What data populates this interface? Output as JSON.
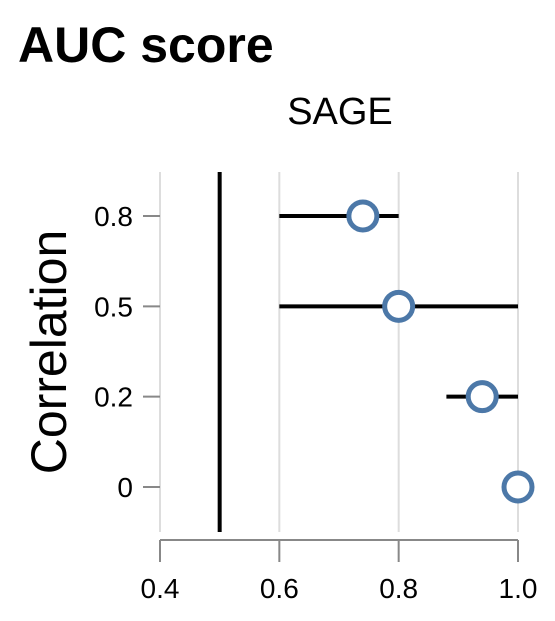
{
  "chart_data": {
    "type": "scatter",
    "title": "AUC score",
    "facet_label": "SAGE",
    "ylabel": "Correlation",
    "xlabel": "",
    "x_ticks": [
      "0.4",
      "0.6",
      "0.8",
      "1.0"
    ],
    "x_tick_values": [
      0.4,
      0.6,
      0.8,
      1.0
    ],
    "xlim": [
      0.4,
      1.0
    ],
    "y_categories": [
      "0.8",
      "0.5",
      "0.2",
      "0"
    ],
    "reference_line_x": 0.5,
    "points": [
      {
        "correlation": "0.8",
        "auc": 0.74,
        "low": 0.6,
        "high": 0.8
      },
      {
        "correlation": "0.5",
        "auc": 0.8,
        "low": 0.6,
        "high": 1.0
      },
      {
        "correlation": "0.2",
        "auc": 0.94,
        "low": 0.88,
        "high": 1.0
      },
      {
        "correlation": "0",
        "auc": 1.0,
        "low": 1.0,
        "high": 1.0
      }
    ],
    "grid": true,
    "colors": {
      "point_stroke": "#4c78a8",
      "point_fill": "#ffffff",
      "error_bar": "#000000",
      "reference_line": "#000000",
      "grid": "#dddddd",
      "axis": "#888888"
    }
  }
}
